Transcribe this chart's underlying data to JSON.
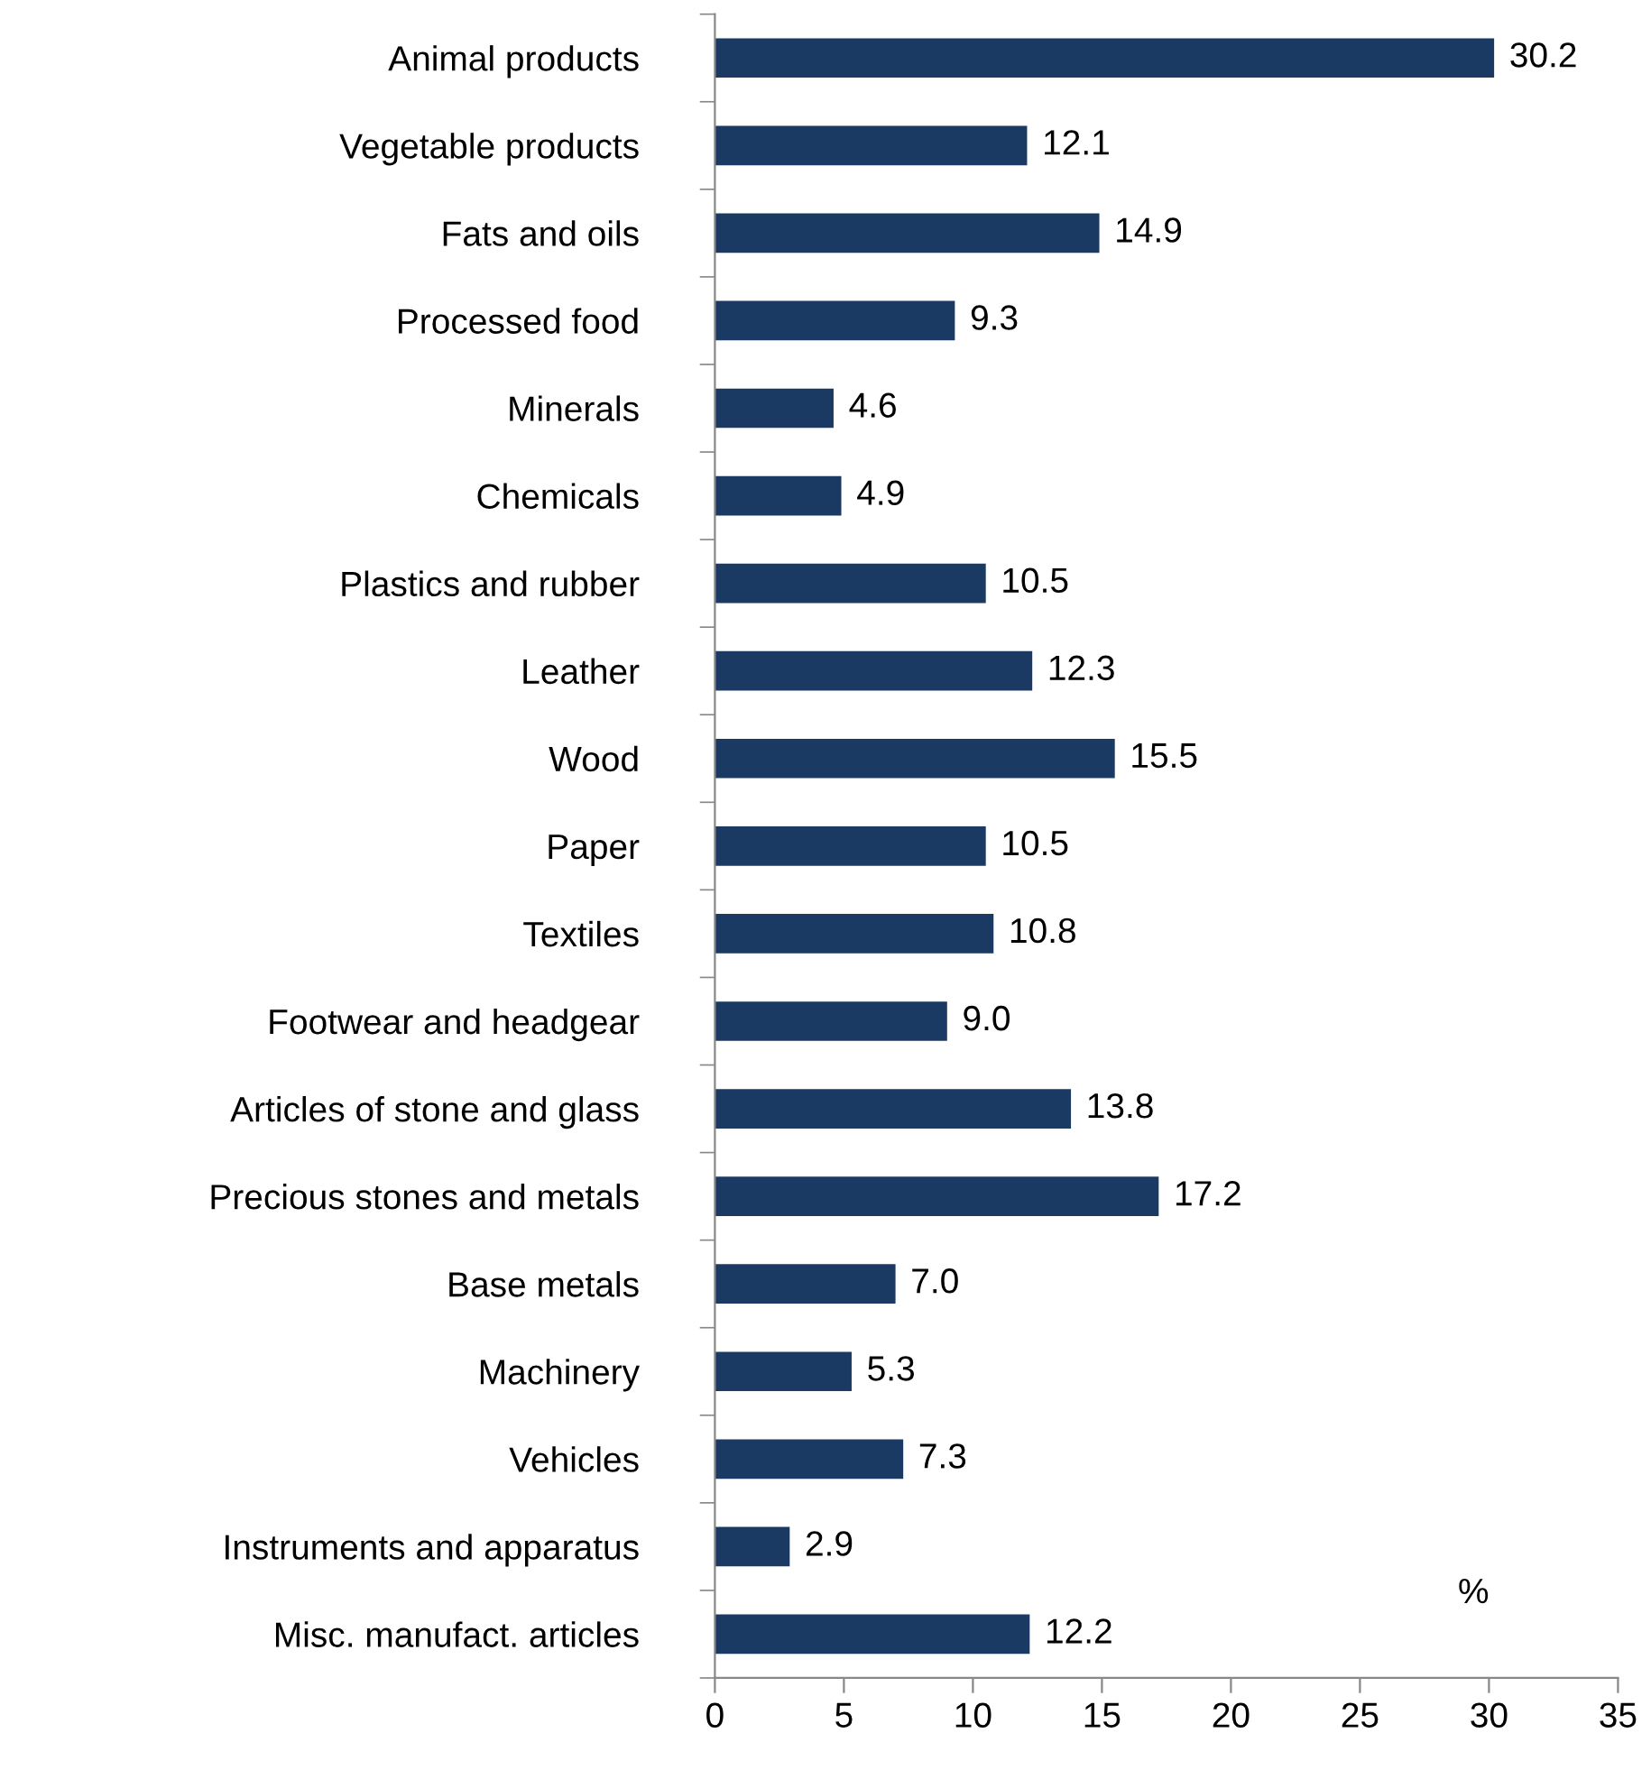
{
  "chart_data": {
    "type": "bar",
    "orientation": "horizontal",
    "categories": [
      "Animal products",
      "Vegetable products",
      "Fats and oils",
      "Processed food",
      "Minerals",
      "Chemicals",
      "Plastics and rubber",
      "Leather",
      "Wood",
      "Paper",
      "Textiles",
      "Footwear and headgear",
      "Articles of stone and glass",
      "Precious stones and metals",
      "Base metals",
      "Machinery",
      "Vehicles",
      "Instruments and apparatus",
      "Misc. manufact. articles"
    ],
    "values": [
      30.2,
      12.1,
      14.9,
      9.3,
      4.6,
      4.9,
      10.5,
      12.3,
      15.5,
      10.5,
      10.8,
      9.0,
      13.8,
      17.2,
      7.0,
      5.3,
      7.3,
      2.9,
      12.2
    ],
    "value_labels": [
      "30.2",
      "12.1",
      "14.9",
      "9.3",
      "4.6",
      "4.9",
      "10.5",
      "12.3",
      "15.5",
      "10.5",
      "10.8",
      "9.0",
      "13.8",
      "17.2",
      "7.0",
      "5.3",
      "7.3",
      "2.9",
      "12.2"
    ],
    "color": "#1b3a63",
    "xlim": [
      0,
      35
    ],
    "xticks": [
      0,
      5,
      10,
      15,
      20,
      25,
      30,
      35
    ],
    "annotations": [
      "%"
    ],
    "grid": false
  }
}
